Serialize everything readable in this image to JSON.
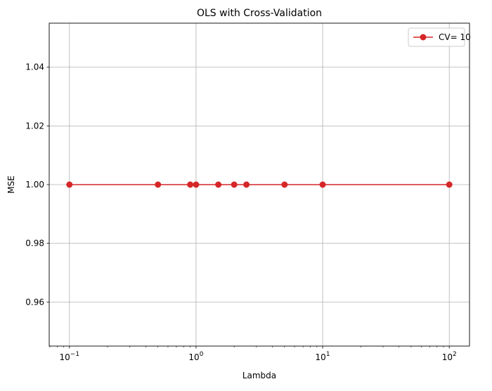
{
  "chart_data": {
    "type": "line",
    "title": "OLS with Cross-Validation",
    "xlabel": "Lambda",
    "ylabel": "MSE",
    "xscale": "log",
    "xlim": [
      0.0692,
      144.5
    ],
    "ylim": [
      0.945,
      1.055
    ],
    "x_ticks": [
      {
        "base": "10",
        "exp": "−1"
      },
      {
        "base": "10",
        "exp": "0"
      },
      {
        "base": "10",
        "exp": "1"
      },
      {
        "base": "10",
        "exp": "2"
      }
    ],
    "y_ticks": [
      "0.96",
      "0.98",
      "1.00",
      "1.02",
      "1.04"
    ],
    "grid": true,
    "legend_position": "top-right",
    "series": [
      {
        "name": "CV= 10",
        "color": "#d62728",
        "marker": "circle",
        "x": [
          0.1,
          0.5,
          0.9,
          1.0,
          1.5,
          2.0,
          2.5,
          5.0,
          10.0,
          100.0
        ],
        "y": [
          1.0,
          1.0,
          1.0,
          1.0,
          1.0,
          1.0,
          1.0,
          1.0,
          1.0,
          1.0
        ]
      }
    ]
  }
}
